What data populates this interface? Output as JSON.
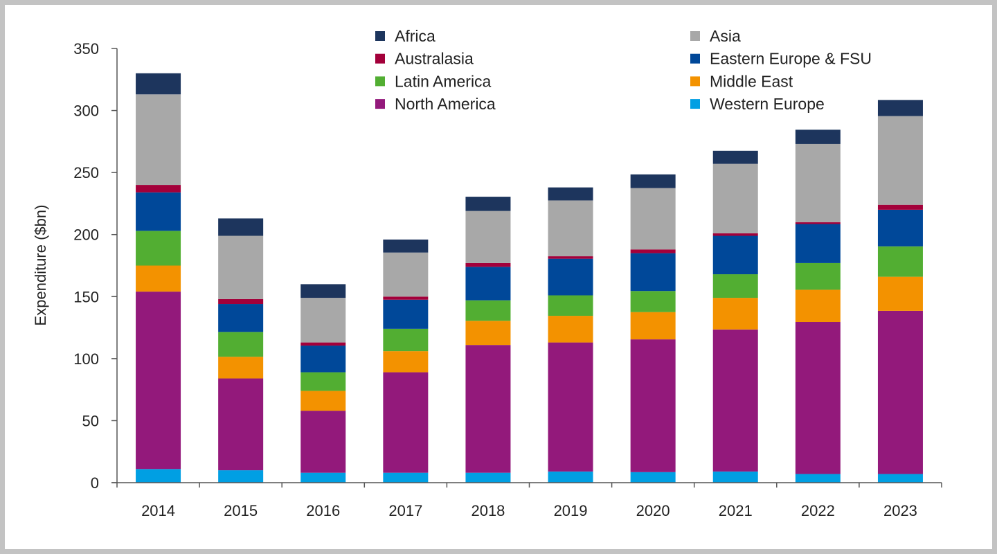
{
  "chart_data": {
    "type": "bar",
    "stacked": true,
    "ylabel": "Expenditure ($bn)",
    "xlabel": "",
    "ylim": [
      0,
      350
    ],
    "yticks": [
      0,
      50,
      100,
      150,
      200,
      250,
      300,
      350
    ],
    "grid": false,
    "legend": "top",
    "categories": [
      "2014",
      "2015",
      "2016",
      "2017",
      "2018",
      "2019",
      "2020",
      "2021",
      "2022",
      "2023"
    ],
    "series": [
      {
        "name": "Western Europe",
        "color": "#009fe3",
        "values": [
          11,
          10,
          8,
          8,
          8,
          9,
          8.5,
          9,
          7,
          7
        ]
      },
      {
        "name": "North America",
        "color": "#93197b",
        "values": [
          143,
          74,
          50,
          81,
          103,
          104,
          107,
          114.5,
          122.5,
          131.5
        ]
      },
      {
        "name": "Middle East",
        "color": "#f39200",
        "values": [
          21,
          17.5,
          16,
          17,
          19.5,
          21.5,
          22,
          25.5,
          26,
          27.5
        ]
      },
      {
        "name": "Latin America",
        "color": "#52ae32",
        "values": [
          28,
          20,
          15,
          18,
          16.5,
          16.5,
          17,
          19,
          21.5,
          24.5
        ]
      },
      {
        "name": "Eastern Europe & FSU",
        "color": "#004899",
        "values": [
          31,
          22.5,
          21.5,
          23.5,
          27,
          29.5,
          30.5,
          31,
          31.5,
          29.5
        ]
      },
      {
        "name": "Australasia",
        "color": "#a3003a",
        "values": [
          6,
          4,
          2.5,
          2.5,
          3,
          2,
          3,
          2,
          1.5,
          4
        ]
      },
      {
        "name": "Asia",
        "color": "#a8a8a8",
        "values": [
          73,
          51,
          36,
          35.5,
          42,
          45,
          49.5,
          56,
          63,
          71.5
        ]
      },
      {
        "name": "Africa",
        "color": "#1d355d",
        "values": [
          17,
          14,
          11,
          10.5,
          11.5,
          10.5,
          11,
          10.5,
          11.5,
          13
        ]
      }
    ],
    "legend_order": [
      "Africa",
      "Asia",
      "Australasia",
      "Eastern Europe & FSU",
      "Latin America",
      "Middle East",
      "North America",
      "Western Europe"
    ]
  }
}
